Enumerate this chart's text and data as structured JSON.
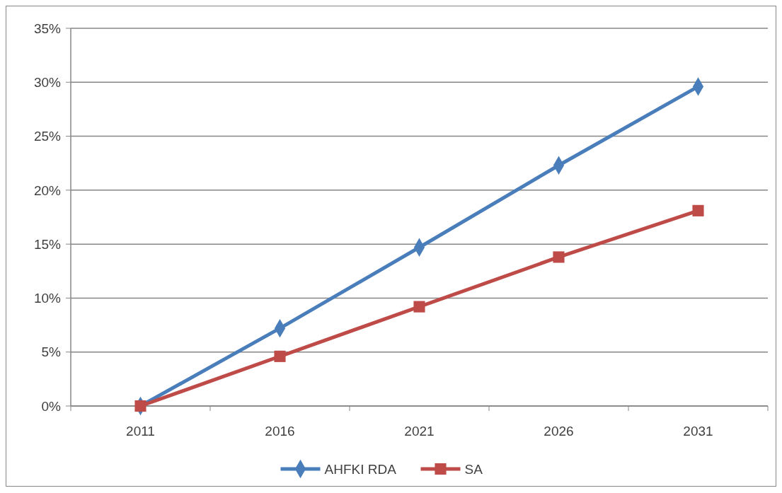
{
  "chart_data": {
    "type": "line",
    "categories": [
      "2011",
      "2016",
      "2021",
      "2026",
      "2031"
    ],
    "series": [
      {
        "name": "AHFKI RDA",
        "color": "#4a7ebb",
        "marker": "diamond",
        "values": [
          0,
          7.2,
          14.7,
          22.3,
          29.6
        ]
      },
      {
        "name": "SA",
        "color": "#be4b48",
        "marker": "square",
        "values": [
          0,
          4.6,
          9.2,
          13.8,
          18.1
        ]
      }
    ],
    "ylim": [
      0,
      35
    ],
    "yticks": [
      {
        "value": 0,
        "label": "0%"
      },
      {
        "value": 5,
        "label": "5%"
      },
      {
        "value": 10,
        "label": "10%"
      },
      {
        "value": 15,
        "label": "15%"
      },
      {
        "value": 20,
        "label": "20%"
      },
      {
        "value": 25,
        "label": "25%"
      },
      {
        "value": 30,
        "label": "30%"
      },
      {
        "value": 35,
        "label": "35%"
      }
    ],
    "grid": "y",
    "legend": "bottom",
    "line_style": "solid"
  }
}
